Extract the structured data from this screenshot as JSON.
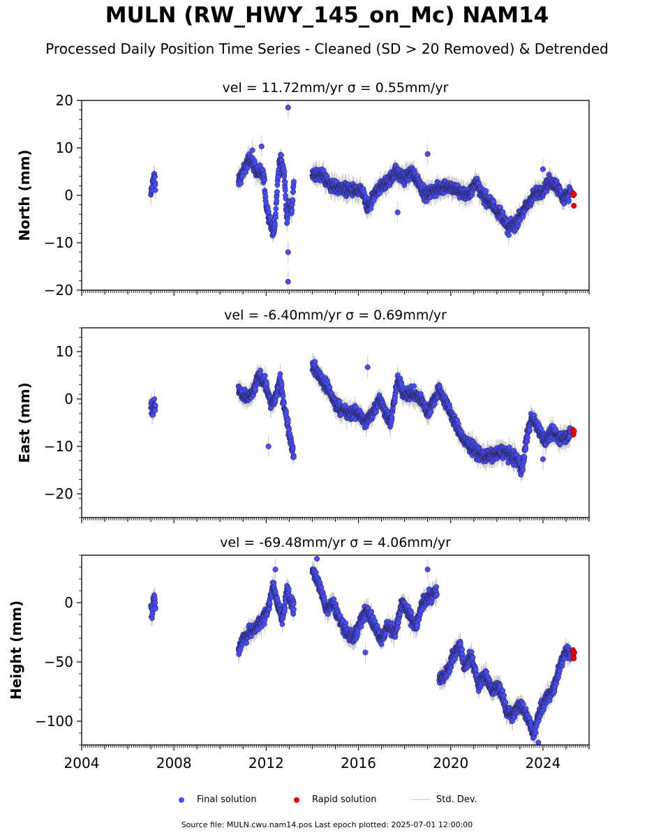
{
  "title": "MULN (RW_HWY_145_on_Mc) NAM14",
  "subtitle": "Processed Daily Position Time Series - Cleaned (SD > 20 Removed) & Detrended",
  "footer": "Source file: MULN.cwu.nam14.pos  Last epoch plotted: 2025-07-01 12:00:00",
  "colors": {
    "final": "#4a4cf5",
    "rapid": "#e8000b",
    "stddev": "#c8c8c8",
    "edge": "#222244"
  },
  "legend": {
    "final": "Final solution",
    "rapid": "Rapid solution",
    "stddev": "Std. Dev."
  },
  "chart_data": [
    {
      "type": "scatter",
      "title": "vel = 11.72mm/yr   σ = 0.55mm/yr",
      "ylabel": "North (mm)",
      "xlim": [
        2004,
        2026
      ],
      "ylim": [
        -20,
        20
      ],
      "yticks": [
        20,
        10,
        0,
        -10,
        -20
      ],
      "yticklabels": [
        "20",
        "10",
        "0",
        "−10",
        "−20"
      ],
      "segments": [
        {
          "range": [
            2007.0,
            2007.2
          ],
          "points": [
            [
              2007.0,
              0.0
            ],
            [
              2007.05,
              1.5
            ],
            [
              2007.1,
              3.0
            ],
            [
              2007.15,
              4.5
            ],
            [
              2007.2,
              2.0
            ]
          ]
        },
        {
          "range": [
            2010.8,
            2013.2
          ],
          "points": [
            [
              2010.8,
              3
            ],
            [
              2011.0,
              5
            ],
            [
              2011.3,
              8
            ],
            [
              2011.6,
              5
            ],
            [
              2011.9,
              4
            ],
            [
              2012.0,
              -2
            ],
            [
              2012.2,
              -6
            ],
            [
              2012.35,
              -8
            ],
            [
              2012.5,
              3
            ],
            [
              2012.6,
              8
            ],
            [
              2012.8,
              4
            ],
            [
              2012.9,
              -6
            ],
            [
              2013.0,
              -1
            ],
            [
              2013.1,
              -4
            ],
            [
              2013.2,
              3
            ]
          ]
        },
        {
          "range": [
            2014.0,
            2025.2
          ],
          "points": [
            [
              2014.0,
              4
            ],
            [
              2014.4,
              4.5
            ],
            [
              2014.8,
              2
            ],
            [
              2015.3,
              1.5
            ],
            [
              2015.8,
              1
            ],
            [
              2016.2,
              0.5
            ],
            [
              2016.4,
              -3
            ],
            [
              2016.8,
              1
            ],
            [
              2017.3,
              3
            ],
            [
              2017.6,
              5
            ],
            [
              2018.0,
              3.5
            ],
            [
              2018.3,
              5
            ],
            [
              2018.6,
              3
            ],
            [
              2018.9,
              0
            ],
            [
              2019.3,
              1
            ],
            [
              2019.8,
              2
            ],
            [
              2020.3,
              1
            ],
            [
              2020.8,
              0
            ],
            [
              2021.1,
              3
            ],
            [
              2021.4,
              0
            ],
            [
              2021.8,
              -2
            ],
            [
              2022.2,
              -4
            ],
            [
              2022.5,
              -7
            ],
            [
              2022.8,
              -6
            ],
            [
              2023.2,
              -3
            ],
            [
              2023.6,
              0
            ],
            [
              2024.0,
              1
            ],
            [
              2024.3,
              3
            ],
            [
              2024.6,
              2
            ],
            [
              2024.9,
              -1
            ],
            [
              2025.2,
              1
            ]
          ]
        }
      ],
      "extra_points": [
        [
          2011.4,
          9.5
        ],
        [
          2011.8,
          10.3
        ],
        [
          2012.95,
          18.5
        ],
        [
          2012.95,
          -12.0
        ],
        [
          2012.95,
          -18.2
        ],
        [
          2017.7,
          -3.6
        ],
        [
          2019.0,
          8.7
        ],
        [
          2024.0,
          5.5
        ]
      ],
      "rapid_points": [
        [
          2025.3,
          0.5
        ],
        [
          2025.32,
          0.0
        ],
        [
          2025.34,
          -2.2
        ],
        [
          2025.35,
          0.2
        ]
      ]
    },
    {
      "type": "scatter",
      "title": "vel = -6.40mm/yr   σ = 0.69mm/yr",
      "ylabel": "East (mm)",
      "xlim": [
        2004,
        2026
      ],
      "ylim": [
        -25,
        15
      ],
      "yticks": [
        10,
        0,
        -10,
        -20
      ],
      "yticklabels": [
        "10",
        "0",
        "−10",
        "−20"
      ],
      "segments": [
        {
          "range": [
            2007.0,
            2007.2
          ],
          "points": [
            [
              2007.0,
              -1
            ],
            [
              2007.05,
              -2
            ],
            [
              2007.1,
              -3
            ],
            [
              2007.15,
              -1
            ],
            [
              2007.2,
              -2
            ]
          ]
        },
        {
          "range": [
            2010.8,
            2013.2
          ],
          "points": [
            [
              2010.8,
              2
            ],
            [
              2011.1,
              0
            ],
            [
              2011.4,
              1
            ],
            [
              2011.7,
              5
            ],
            [
              2012.0,
              3
            ],
            [
              2012.2,
              -1
            ],
            [
              2012.4,
              0
            ],
            [
              2012.6,
              4
            ],
            [
              2012.8,
              -2
            ],
            [
              2013.0,
              -7
            ],
            [
              2013.2,
              -12
            ]
          ]
        },
        {
          "range": [
            2014.0,
            2025.2
          ],
          "points": [
            [
              2014.0,
              7
            ],
            [
              2014.3,
              5
            ],
            [
              2014.7,
              2
            ],
            [
              2015.0,
              -1
            ],
            [
              2015.5,
              -3
            ],
            [
              2016.0,
              -3
            ],
            [
              2016.3,
              -5
            ],
            [
              2016.6,
              -3
            ],
            [
              2016.9,
              0
            ],
            [
              2017.2,
              -3
            ],
            [
              2017.4,
              -5
            ],
            [
              2017.7,
              4
            ],
            [
              2018.0,
              1
            ],
            [
              2018.4,
              1
            ],
            [
              2018.7,
              0
            ],
            [
              2019.0,
              -3
            ],
            [
              2019.3,
              0
            ],
            [
              2019.5,
              2
            ],
            [
              2019.8,
              -1
            ],
            [
              2020.2,
              -5
            ],
            [
              2020.6,
              -9
            ],
            [
              2020.9,
              -10
            ],
            [
              2021.3,
              -12
            ],
            [
              2021.8,
              -12
            ],
            [
              2022.3,
              -11
            ],
            [
              2022.6,
              -12
            ],
            [
              2022.9,
              -13
            ],
            [
              2023.1,
              -15
            ],
            [
              2023.3,
              -8
            ],
            [
              2023.5,
              -4
            ],
            [
              2023.8,
              -6
            ],
            [
              2024.1,
              -9
            ],
            [
              2024.4,
              -7
            ],
            [
              2024.7,
              -8
            ],
            [
              2025.0,
              -8
            ],
            [
              2025.2,
              -7
            ]
          ]
        }
      ],
      "extra_points": [
        [
          2012.1,
          -10.0
        ],
        [
          2016.4,
          6.7
        ],
        [
          2024.0,
          -12.7
        ]
      ],
      "rapid_points": [
        [
          2025.3,
          -6.5
        ],
        [
          2025.32,
          -7.5
        ],
        [
          2025.35,
          -6.8
        ]
      ]
    },
    {
      "type": "scatter",
      "title": "vel = -69.48mm/yr   σ = 4.06mm/yr",
      "ylabel": "Height (mm)",
      "xlim": [
        2004,
        2026
      ],
      "ylim": [
        -120,
        40
      ],
      "yticks": [
        0,
        -50,
        -100
      ],
      "yticklabels": [
        "0",
        "−50",
        "−100"
      ],
      "xticks": [
        2004,
        2008,
        2012,
        2016,
        2020,
        2024
      ],
      "segments": [
        {
          "range": [
            2007.0,
            2007.2
          ],
          "points": [
            [
              2007.0,
              -5
            ],
            [
              2007.05,
              -12
            ],
            [
              2007.1,
              0
            ],
            [
              2007.15,
              5
            ],
            [
              2007.2,
              -3
            ]
          ]
        },
        {
          "range": [
            2010.8,
            2013.2
          ],
          "points": [
            [
              2010.8,
              -40
            ],
            [
              2011.0,
              -30
            ],
            [
              2011.3,
              -25
            ],
            [
              2011.6,
              -20
            ],
            [
              2011.9,
              -12
            ],
            [
              2012.1,
              -5
            ],
            [
              2012.3,
              15
            ],
            [
              2012.5,
              0
            ],
            [
              2012.7,
              -15
            ],
            [
              2012.9,
              10
            ],
            [
              2013.1,
              0
            ],
            [
              2013.2,
              -5
            ]
          ]
        },
        {
          "range": [
            2014.0,
            2019.4
          ],
          "points": [
            [
              2014.0,
              28
            ],
            [
              2014.3,
              15
            ],
            [
              2014.6,
              -5
            ],
            [
              2014.9,
              0
            ],
            [
              2015.2,
              -15
            ],
            [
              2015.5,
              -25
            ],
            [
              2015.8,
              -30
            ],
            [
              2016.1,
              -15
            ],
            [
              2016.4,
              -5
            ],
            [
              2016.7,
              -20
            ],
            [
              2017.0,
              -30
            ],
            [
              2017.3,
              -20
            ],
            [
              2017.6,
              -25
            ],
            [
              2017.9,
              0
            ],
            [
              2018.2,
              -10
            ],
            [
              2018.5,
              -20
            ],
            [
              2018.8,
              0
            ],
            [
              2019.1,
              5
            ],
            [
              2019.4,
              10
            ]
          ]
        },
        {
          "range": [
            2019.5,
            2025.2
          ],
          "points": [
            [
              2019.5,
              -65
            ],
            [
              2019.8,
              -60
            ],
            [
              2020.1,
              -45
            ],
            [
              2020.4,
              -35
            ],
            [
              2020.6,
              -55
            ],
            [
              2020.9,
              -45
            ],
            [
              2021.2,
              -70
            ],
            [
              2021.5,
              -60
            ],
            [
              2021.8,
              -75
            ],
            [
              2022.1,
              -70
            ],
            [
              2022.4,
              -90
            ],
            [
              2022.7,
              -95
            ],
            [
              2023.0,
              -85
            ],
            [
              2023.3,
              -95
            ],
            [
              2023.6,
              -110
            ],
            [
              2023.9,
              -90
            ],
            [
              2024.2,
              -80
            ],
            [
              2024.5,
              -70
            ],
            [
              2024.8,
              -50
            ],
            [
              2025.0,
              -40
            ],
            [
              2025.2,
              -45
            ]
          ]
        }
      ],
      "extra_points": [
        [
          2012.4,
          28.0
        ],
        [
          2014.2,
          37.0
        ],
        [
          2019.0,
          28.0
        ],
        [
          2016.3,
          -42.0
        ],
        [
          2023.8,
          -118.0
        ]
      ],
      "rapid_points": [
        [
          2025.3,
          -40
        ],
        [
          2025.32,
          -45
        ],
        [
          2025.34,
          -47
        ],
        [
          2025.36,
          -42
        ]
      ]
    }
  ]
}
